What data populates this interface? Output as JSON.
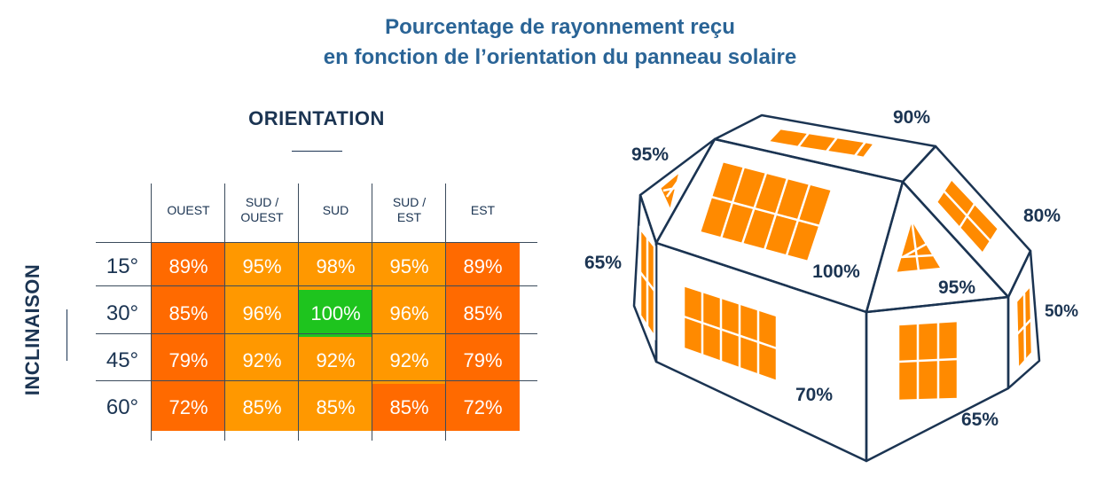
{
  "title_line1": "Pourcentage de rayonnement reçu",
  "title_line2": "en fonction de l’orientation du panneau solaire",
  "orientation_label": "ORIENTATION",
  "inclinaison_label": "INCLINAISON",
  "colors": {
    "deep_orange": "#ff6a00",
    "orange": "#ff9800",
    "light_orange": "#ffa000",
    "green": "#1ec41e",
    "navy": "#1b3452",
    "title_blue": "#2a6496"
  },
  "table": {
    "columns": [
      {
        "line1": "OUEST",
        "line2": ""
      },
      {
        "line1": "SUD /",
        "line2": "OUEST"
      },
      {
        "line1": "SUD",
        "line2": ""
      },
      {
        "line1": "SUD /",
        "line2": "EST"
      },
      {
        "line1": "EST",
        "line2": ""
      }
    ],
    "rows": [
      {
        "label": "15°",
        "cells": [
          "89%",
          "95%",
          "98%",
          "95%",
          "89%"
        ]
      },
      {
        "label": "30°",
        "cells": [
          "85%",
          "96%",
          "100%",
          "96%",
          "85%"
        ]
      },
      {
        "label": "45°",
        "cells": [
          "79%",
          "92%",
          "92%",
          "92%",
          "79%"
        ]
      },
      {
        "label": "60°",
        "cells": [
          "72%",
          "85%",
          "85%",
          "85%",
          "72%"
        ]
      }
    ],
    "cell_colors": [
      [
        "#ff6a00",
        "#ff9800",
        "#ff9800",
        "#ff9800",
        "#ff6a00"
      ],
      [
        "#ff6a00",
        "#ff9800",
        "#1ec41e",
        "#ff9800",
        "#ff6a00"
      ],
      [
        "#ff6a00",
        "#ff9800",
        "#ff9800",
        "#ff9800",
        "#ff6a00"
      ],
      [
        "#ff6a00",
        "#ff9800",
        "#ff9800",
        "#ff6a00",
        "#ff6a00"
      ]
    ]
  },
  "house": {
    "label_roof_back": "90%",
    "label_left_gable": "95%",
    "label_right_roof_back": "80%",
    "label_left_wall": "65%",
    "label_main_roof": "100%",
    "label_right_gable": "95%",
    "label_right_wall": "50%",
    "label_front_wall": "70%",
    "label_front_right_wall": "65%"
  }
}
